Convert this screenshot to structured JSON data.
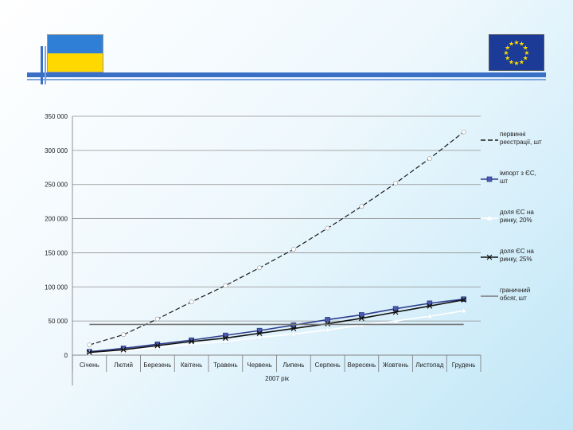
{
  "slide": {
    "flag_left": "flag-of-ukraine",
    "flag_right": "flag-of-european-union",
    "accent_color": "#3a6fc6"
  },
  "chart_data": {
    "type": "line",
    "categories": [
      "Січень",
      "Лютий",
      "Березень",
      "Квітень",
      "Травень",
      "Червень",
      "Липень",
      "Серпень",
      "Вересень",
      "Жовтень",
      "Листопад",
      "Грудень"
    ],
    "xlabel": "2007 рік",
    "ylabel": "",
    "ylim": [
      0,
      350000
    ],
    "yticks": [
      "0",
      "50 000",
      "100 000",
      "150 000",
      "200 000",
      "250 000",
      "300 000",
      "350 000"
    ],
    "yticks_values": [
      0,
      50000,
      100000,
      150000,
      200000,
      250000,
      300000,
      350000
    ],
    "grid": true,
    "legend_position": "right",
    "series": [
      {
        "name": "первинні реєстрації, шт",
        "color": "#1a1a1a",
        "dash": "6,3",
        "marker": "circle",
        "values": [
          15000,
          30000,
          53000,
          78000,
          102000,
          128000,
          155000,
          186000,
          218000,
          252000,
          288000,
          327000
        ]
      },
      {
        "name": "імпорт з ЄС, шт",
        "color": "#2e3f8f",
        "dash": "",
        "marker": "square",
        "values": [
          5000,
          10000,
          16000,
          22000,
          29000,
          36000,
          44000,
          52000,
          59000,
          68000,
          76000,
          82000
        ]
      },
      {
        "name": "доля ЄС на ринку, 20%",
        "color": "#ffffff",
        "dash": "",
        "marker": "triangle",
        "values": [
          3000,
          6000,
          11000,
          16000,
          20000,
          26000,
          31000,
          37000,
          44000,
          50000,
          57000,
          65000
        ]
      },
      {
        "name": "доля ЄС на ринку, 25%",
        "color": "#111111",
        "dash": "",
        "marker": "x",
        "values": [
          4000,
          8000,
          14000,
          20000,
          25000,
          32000,
          39000,
          46000,
          54000,
          63000,
          72000,
          81000
        ]
      },
      {
        "name": "граничний обсяг, шт",
        "color": "#777777",
        "dash": "",
        "marker": "none",
        "values": [
          45000,
          45000,
          45000,
          45000,
          45000,
          45000,
          45000,
          45000,
          45000,
          45000,
          45000,
          45000
        ]
      }
    ]
  }
}
